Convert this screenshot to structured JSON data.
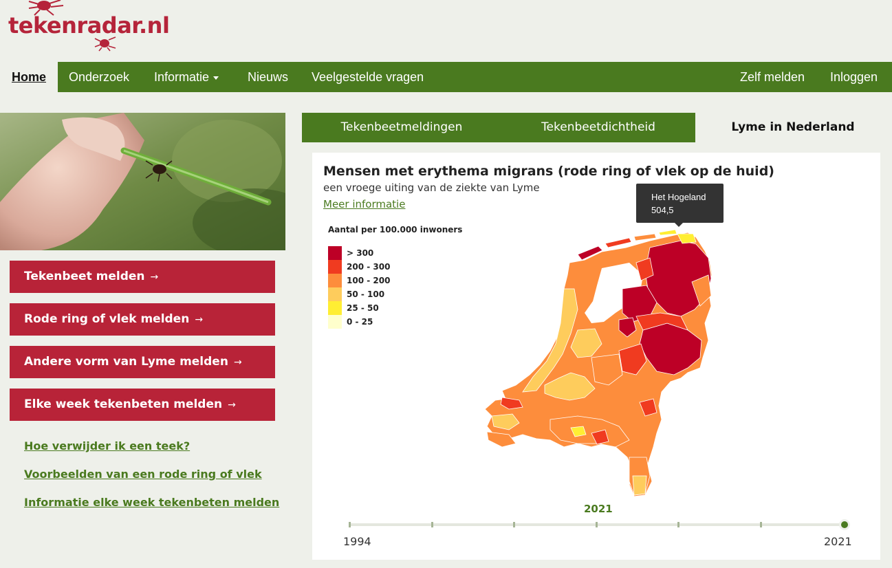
{
  "site": {
    "logo_text": "tekenradar.nl"
  },
  "nav": {
    "home": "Home",
    "items": [
      "Onderzoek",
      "Informatie",
      "Nieuws",
      "Veelgestelde vragen"
    ],
    "right": [
      "Zelf melden",
      "Inloggen"
    ]
  },
  "sidebar": {
    "buttons": [
      "Tekenbeet melden",
      "Rode ring of vlek melden",
      "Andere vorm van Lyme melden",
      "Elke week tekenbeten melden"
    ],
    "arrow": "→",
    "links": [
      "Hoe verwijder ik een teek?",
      "Voorbeelden van een rode ring of vlek",
      "Informatie elke week tekenbeten melden"
    ]
  },
  "tabs": [
    "Tekenbeetmeldingen",
    "Tekenbeetdichtheid",
    "Lyme in Nederland"
  ],
  "active_tab": "Lyme in Nederland",
  "map": {
    "title": "Mensen met erythema migrans (rode ring of vlek op de huid)",
    "subtitle": "een vroege uiting van de ziekte van Lyme",
    "more_link": "Meer informatie",
    "legend_title": "Aantal per 100.000 inwoners",
    "legend": [
      {
        "label": "> 300",
        "color": "#bd0026"
      },
      {
        "label": "200 - 300",
        "color": "#f03b20"
      },
      {
        "label": "100 - 200",
        "color": "#fd8d3c"
      },
      {
        "label": "50 - 100",
        "color": "#fecc5c"
      },
      {
        "label": "25 - 50",
        "color": "#ffee33"
      },
      {
        "label": "0 - 25",
        "color": "#ffffcc"
      }
    ],
    "tooltip": {
      "region": "Het Hogeland",
      "value": "504,5"
    }
  },
  "timeline": {
    "current_year": "2021",
    "start_year": "1994",
    "end_year": "2021",
    "position": 1.0
  },
  "colors": {
    "brand_green": "#4a7a1f",
    "brand_red": "#b82338",
    "background": "#eef0ea"
  }
}
